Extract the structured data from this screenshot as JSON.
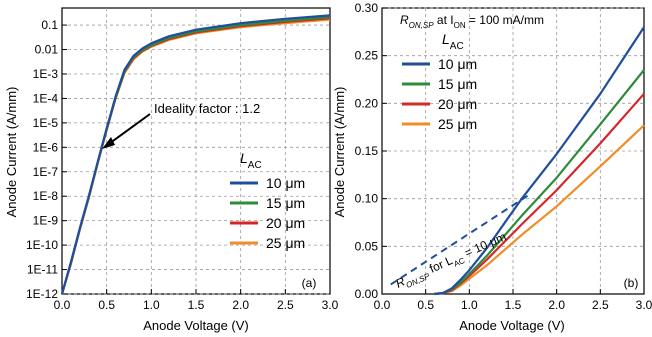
{
  "chart_data": [
    {
      "panel": "(a)",
      "type": "line",
      "xlabel": "Anode Voltage (V)",
      "ylabel": "Anode Current (A/mm)",
      "xlim": [
        0.0,
        3.0
      ],
      "ylim": [
        1e-12,
        0.5
      ],
      "yscale": "log",
      "grid": true,
      "x_ticks": [
        "0.0",
        "0.5",
        "1.0",
        "1.5",
        "2.0",
        "2.5",
        "3.0"
      ],
      "y_ticks": [
        "1E-12",
        "1E-11",
        "1E-10",
        "1E-9",
        "1E-8",
        "1E-7",
        "1E-6",
        "1E-5",
        "1E-4",
        "1E-3",
        "0.01",
        "0.1"
      ],
      "legend_title": "L",
      "legend_title_sub": "AC",
      "legend_placement": "lower-right",
      "annotation": "Ideality factor : 1.2",
      "series": [
        {
          "name": "10 μm",
          "color": "#1f4e9c",
          "x": [
            0,
            0.1,
            0.2,
            0.3,
            0.4,
            0.5,
            0.6,
            0.7,
            0.8,
            0.9,
            1.0,
            1.2,
            1.5,
            2.0,
            2.5,
            3.0
          ],
          "y": [
            1e-12,
            2e-11,
            5e-10,
            1e-08,
            2.5e-07,
            6e-06,
            0.00012,
            0.0015,
            0.0055,
            0.011,
            0.018,
            0.035,
            0.065,
            0.12,
            0.18,
            0.25
          ]
        },
        {
          "name": "15 μm",
          "color": "#2e8b3a",
          "x": [
            0,
            0.1,
            0.2,
            0.3,
            0.4,
            0.5,
            0.6,
            0.7,
            0.8,
            0.9,
            1.0,
            1.2,
            1.5,
            2.0,
            2.5,
            3.0
          ],
          "y": [
            1e-12,
            1.9e-11,
            4.8e-10,
            9.5e-09,
            2.4e-07,
            5.7e-06,
            0.00011,
            0.0013,
            0.0048,
            0.0095,
            0.015,
            0.03,
            0.055,
            0.1,
            0.15,
            0.21
          ]
        },
        {
          "name": "20 μm",
          "color": "#d62728",
          "x": [
            0,
            0.1,
            0.2,
            0.3,
            0.4,
            0.5,
            0.6,
            0.7,
            0.8,
            0.9,
            1.0,
            1.2,
            1.5,
            2.0,
            2.5,
            3.0
          ],
          "y": [
            1e-12,
            1.8e-11,
            4.6e-10,
            9e-09,
            2.3e-07,
            5.4e-06,
            0.000105,
            0.0012,
            0.0044,
            0.0088,
            0.014,
            0.027,
            0.05,
            0.09,
            0.135,
            0.19
          ]
        },
        {
          "name": "25 μm",
          "color": "#f28c28",
          "x": [
            0,
            0.1,
            0.2,
            0.3,
            0.4,
            0.5,
            0.6,
            0.7,
            0.8,
            0.9,
            1.0,
            1.2,
            1.5,
            2.0,
            2.5,
            3.0
          ],
          "y": [
            1e-12,
            1.7e-11,
            4.4e-10,
            8.5e-09,
            2.2e-07,
            5.1e-06,
            0.0001,
            0.0011,
            0.004,
            0.0082,
            0.013,
            0.025,
            0.046,
            0.083,
            0.12,
            0.17
          ]
        }
      ]
    },
    {
      "panel": "(b)",
      "type": "line",
      "xlabel": "Anode Voltage (V)",
      "ylabel": "Anode Current (A/mm)",
      "xlim": [
        0.0,
        3.0
      ],
      "ylim": [
        0.0,
        0.3
      ],
      "grid": true,
      "x_ticks": [
        "0.0",
        "0.5",
        "1.0",
        "1.5",
        "2.0",
        "2.5",
        "3.0"
      ],
      "y_ticks": [
        "0.00",
        "0.05",
        "0.10",
        "0.15",
        "0.20",
        "0.25",
        "0.30"
      ],
      "header_parts": [
        "R",
        "ON,SP",
        " at I",
        "ON",
        " = 100 mA/mm"
      ],
      "legend_title": "L",
      "legend_title_sub": "AC",
      "legend_placement": "top-left",
      "annotation_parts": [
        "R",
        "ON,SP",
        " for L",
        "AC",
        " = 10 μm"
      ],
      "dashed_line": {
        "x": [
          0.1,
          1.7
        ],
        "y": [
          0.01,
          0.105
        ]
      },
      "series": [
        {
          "name": "10 μm",
          "color": "#1f4e9c",
          "x": [
            0.6,
            0.7,
            0.8,
            0.9,
            1.0,
            1.2,
            1.6,
            2.0,
            2.5,
            3.0
          ],
          "y": [
            0.0,
            0.001,
            0.006,
            0.015,
            0.025,
            0.048,
            0.1,
            0.147,
            0.21,
            0.28
          ]
        },
        {
          "name": "15 μm",
          "color": "#2e8b3a",
          "x": [
            0.6,
            0.7,
            0.8,
            0.9,
            1.0,
            1.2,
            1.6,
            2.0,
            2.5,
            3.0
          ],
          "y": [
            0.0,
            0.001,
            0.005,
            0.012,
            0.021,
            0.04,
            0.082,
            0.122,
            0.178,
            0.235
          ]
        },
        {
          "name": "20 μm",
          "color": "#d62728",
          "x": [
            0.6,
            0.7,
            0.8,
            0.9,
            1.0,
            1.2,
            1.6,
            2.0,
            2.5,
            3.0
          ],
          "y": [
            0.0,
            0.001,
            0.004,
            0.011,
            0.019,
            0.036,
            0.073,
            0.109,
            0.158,
            0.21
          ]
        },
        {
          "name": "25 μm",
          "color": "#f28c28",
          "x": [
            0.6,
            0.7,
            0.8,
            0.9,
            1.0,
            1.2,
            1.6,
            2.0,
            2.5,
            3.0
          ],
          "y": [
            0.0,
            0.001,
            0.003,
            0.009,
            0.016,
            0.03,
            0.062,
            0.092,
            0.134,
            0.177
          ]
        }
      ]
    }
  ]
}
